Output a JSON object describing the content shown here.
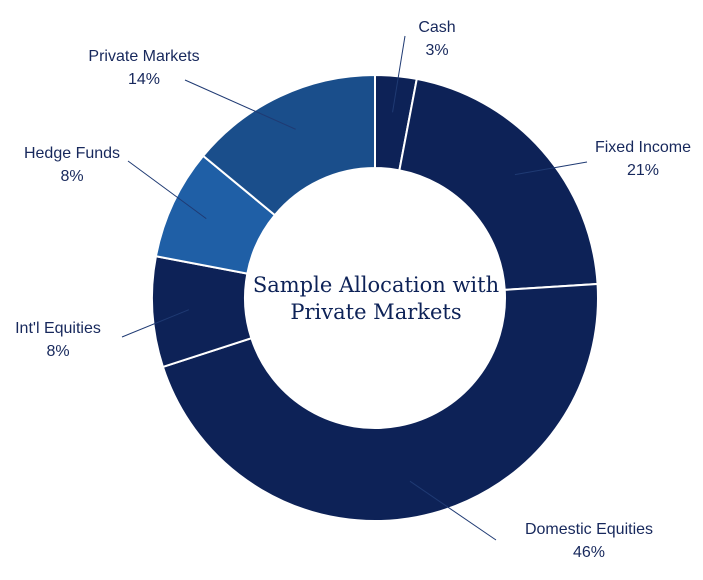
{
  "chart_data": {
    "type": "pie",
    "title": [
      "Sample Allocation with",
      "Private Markets"
    ],
    "slices": [
      {
        "label": "Cash",
        "value": 3,
        "display": "3%",
        "color": "#0d2257"
      },
      {
        "label": "Fixed Income",
        "value": 21,
        "display": "21%",
        "color": "#0d2257"
      },
      {
        "label": "Domestic Equities",
        "value": 46,
        "display": "46%",
        "color": "#0d2257"
      },
      {
        "label": "Int'l Equities",
        "value": 8,
        "display": "8%",
        "color": "#0d2257"
      },
      {
        "label": "Hedge Funds",
        "value": 8,
        "display": "8%",
        "color": "#1f5fa6"
      },
      {
        "label": "Private Markets",
        "value": 14,
        "display": "14%",
        "color": "#1a4e8b"
      }
    ],
    "legend": "none"
  }
}
